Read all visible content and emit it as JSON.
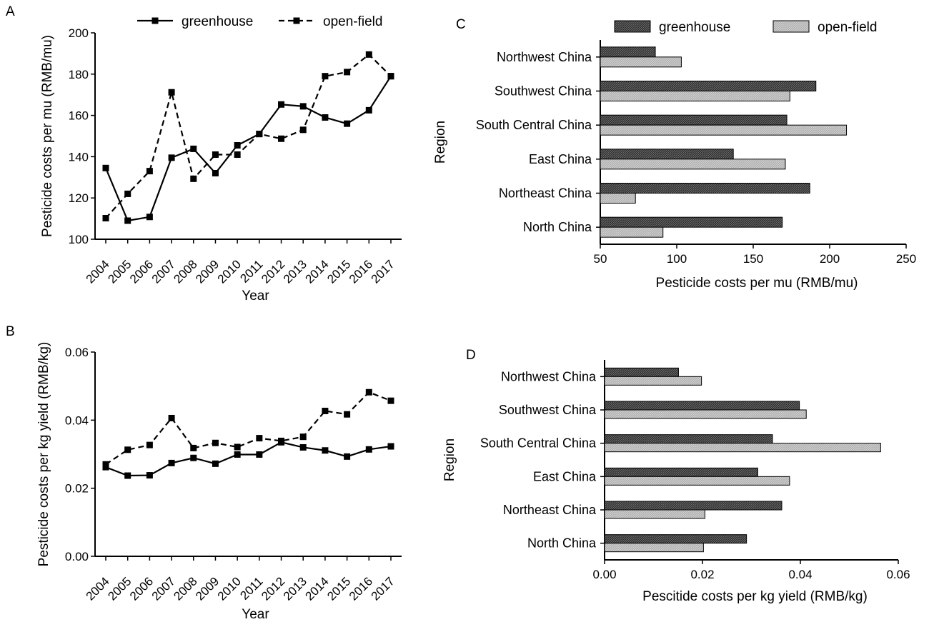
{
  "chart_data": [
    {
      "panel": "A",
      "type": "line",
      "x": [
        "2004",
        "2005",
        "2006",
        "2007",
        "2008",
        "2009",
        "2010",
        "2011",
        "2012",
        "2013",
        "2014",
        "2015",
        "2016",
        "2017"
      ],
      "series": [
        {
          "name": "greenhouse",
          "style": "solid",
          "values": [
            134.5,
            109,
            110.8,
            139.5,
            143.8,
            132,
            145.5,
            151,
            165.3,
            164.4,
            159,
            156,
            162.5,
            179
          ]
        },
        {
          "name": "open-field",
          "style": "dashed",
          "values": [
            110.2,
            122,
            133,
            171.2,
            129.3,
            141,
            141,
            151,
            148.7,
            153,
            179,
            181,
            189.5,
            179
          ]
        }
      ],
      "title": "",
      "xlabel": "Year",
      "ylabel": "Pesticide costs per mu (RMB/mu)",
      "ylim": [
        100,
        200
      ],
      "yticks": [
        "100",
        "120",
        "140",
        "160",
        "180",
        "200"
      ],
      "legend": "top"
    },
    {
      "panel": "B",
      "type": "line",
      "x": [
        "2004",
        "2005",
        "2006",
        "2007",
        "2008",
        "2009",
        "2010",
        "2011",
        "2012",
        "2013",
        "2014",
        "2015",
        "2016",
        "2017"
      ],
      "series": [
        {
          "name": "greenhouse",
          "style": "solid",
          "values": [
            0.0262,
            0.0237,
            0.0238,
            0.0274,
            0.0289,
            0.0272,
            0.0299,
            0.0299,
            0.0335,
            0.032,
            0.0311,
            0.0293,
            0.0314,
            0.0323
          ]
        },
        {
          "name": "open-field",
          "style": "dashed",
          "values": [
            0.027,
            0.0313,
            0.0327,
            0.0406,
            0.0318,
            0.0333,
            0.0321,
            0.0347,
            0.0339,
            0.0351,
            0.0427,
            0.0417,
            0.0482,
            0.0457
          ]
        }
      ],
      "title": "",
      "xlabel": "Year",
      "ylabel": "Pesticide costs per kg yield (RMB/kg)",
      "ylim": [
        0,
        0.06
      ],
      "yticks": [
        "0.00",
        "0.02",
        "0.04",
        "0.06"
      ]
    },
    {
      "panel": "C",
      "type": "bar",
      "orientation": "horizontal",
      "categories": [
        "Northwest China",
        "Southwest China",
        "South Central China",
        "East China",
        "Northeast China",
        "North China"
      ],
      "series": [
        {
          "name": "greenhouse",
          "values": [
            86,
            191,
            172,
            137,
            187,
            169
          ]
        },
        {
          "name": "open-field",
          "values": [
            103,
            174,
            211,
            171,
            73,
            91
          ]
        }
      ],
      "title": "",
      "xlabel": "Pesticide costs per mu (RMB/mu)",
      "ylabel": "Region",
      "xlim": [
        50,
        250
      ],
      "xticks": [
        "50",
        "100",
        "150",
        "200",
        "250"
      ],
      "legend": "top"
    },
    {
      "panel": "D",
      "type": "bar",
      "orientation": "horizontal",
      "categories": [
        "Northwest China",
        "Southwest China",
        "South Central China",
        "East China",
        "Northeast China",
        "North China"
      ],
      "series": [
        {
          "name": "greenhouse",
          "values": [
            0.0151,
            0.0398,
            0.0343,
            0.0313,
            0.0362,
            0.029
          ]
        },
        {
          "name": "open-field",
          "values": [
            0.0198,
            0.0412,
            0.0564,
            0.0378,
            0.0205,
            0.0202
          ]
        }
      ],
      "title": "",
      "xlabel": "Pescitide costs per kg yield (RMB/kg)",
      "ylabel": "Region",
      "xlim": [
        0,
        0.06
      ],
      "xticks": [
        "0.00",
        "0.02",
        "0.04",
        "0.06"
      ]
    }
  ],
  "colors": {
    "greenhouse_bar": "#3c3c3c",
    "openfield_bar": "#b4b4b4",
    "line": "#000000"
  }
}
